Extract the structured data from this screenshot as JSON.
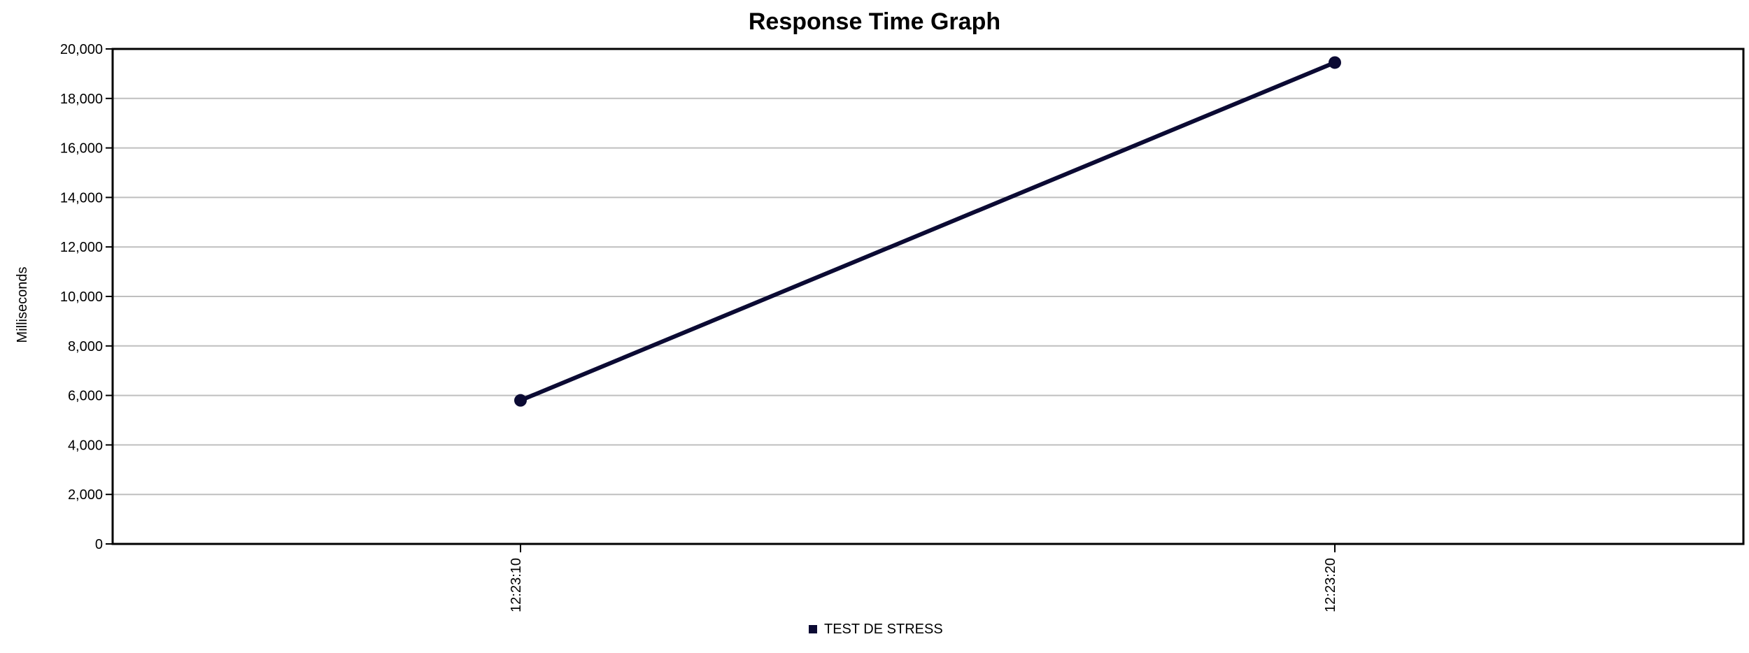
{
  "chart_data": {
    "type": "line",
    "title": "Response Time Graph",
    "xlabel": "",
    "ylabel": "Milliseconds",
    "x": [
      "12:23:10",
      "12:23:20"
    ],
    "series": [
      {
        "name": "TEST DE STRESS",
        "values": [
          5800,
          19450
        ],
        "color": "#0b0a33"
      }
    ],
    "ylim": [
      0,
      20000
    ],
    "yticks": [
      "0",
      "2,000",
      "4,000",
      "6,000",
      "8,000",
      "10,000",
      "12,000",
      "14,000",
      "16,000",
      "18,000",
      "20,000"
    ],
    "ytick_values": [
      0,
      2000,
      4000,
      6000,
      8000,
      10000,
      12000,
      14000,
      16000,
      18000,
      20000
    ],
    "grid": true,
    "legend_position": "bottom-center"
  }
}
